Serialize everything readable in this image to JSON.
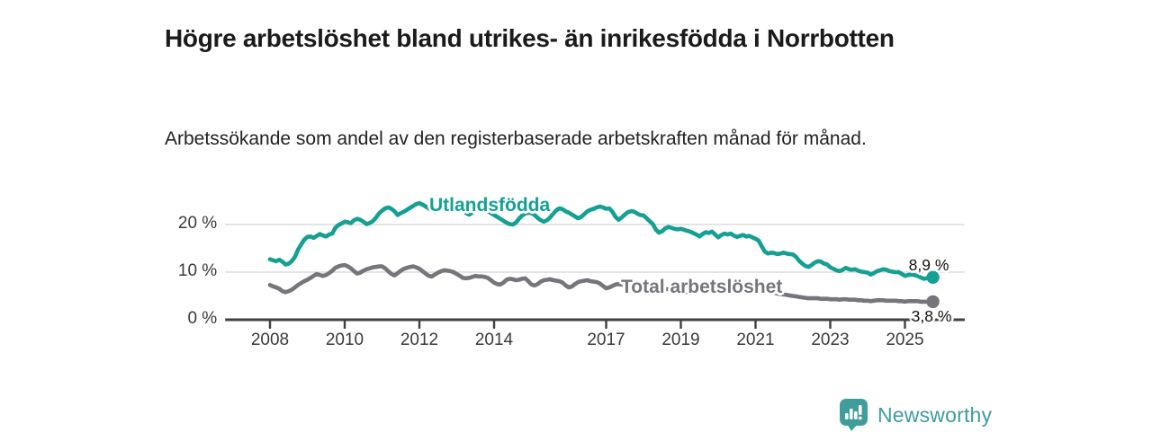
{
  "page": {
    "title": "Högre arbetslöshet bland utrikes- än inrikesfödda i Norrbotten",
    "subtitle": "Arbetssökande som andel av den registerbaserade arbetskraften månad för månad."
  },
  "footer": {
    "brand": "Newsworthy",
    "brand_color": "#3f9d9b"
  },
  "colors": {
    "foreign_born_line": "#14a092",
    "total_line": "#75757b",
    "grid": "#dcdcdc",
    "axis": "#404040",
    "tick_text": "#3a3a3a",
    "value_text": "#111111",
    "background": "#ffffff"
  },
  "chart_data": {
    "type": "line",
    "title": "Högre arbetslöshet bland utrikes- än inrikesfödda i Norrbotten",
    "subtitle": "Arbetssökande som andel av den registerbaserade arbetskraften månad för månad.",
    "unit": "percent",
    "frequency": "monthly",
    "grid": true,
    "legend_position": "inline-labels",
    "x_axis": {
      "tick_labels": [
        "2008",
        "2010",
        "2012",
        "2014",
        "2017",
        "2019",
        "2021",
        "2023",
        "2025"
      ],
      "tick_years": [
        2008,
        2010,
        2012,
        2014,
        2017,
        2019,
        2021,
        2023,
        2025
      ],
      "range": [
        2006.8,
        2026.6
      ]
    },
    "y_axis": {
      "ticks": [
        {
          "value": 0,
          "label": "0 %"
        },
        {
          "value": 10,
          "label": "10 %"
        },
        {
          "value": 20,
          "label": "20 %"
        }
      ],
      "range": [
        0,
        26
      ]
    },
    "series": [
      {
        "name": "Utlandsfödda",
        "color": "#14a092",
        "start_year": 2008,
        "end_value_label": "8,9 %",
        "end_value": 8.9,
        "values": [
          12.7,
          12.5,
          12.3,
          12.6,
          12.2,
          11.6,
          11.8,
          12.3,
          13.2,
          14.7,
          15.8,
          16.8,
          17.4,
          17.5,
          17.2,
          17.6,
          18.0,
          17.7,
          17.5,
          17.9,
          18.1,
          19.3,
          19.9,
          20.2,
          20.6,
          20.5,
          20.3,
          20.9,
          21.2,
          21.0,
          20.6,
          20.1,
          20.3,
          20.7,
          21.4,
          22.3,
          22.9,
          23.4,
          23.6,
          23.3,
          22.8,
          22.0,
          22.4,
          22.7,
          23.1,
          23.5,
          23.9,
          24.3,
          24.5,
          24.2,
          23.8,
          23.4,
          23.0,
          22.6,
          22.9,
          23.3,
          23.6,
          23.8,
          23.5,
          23.2,
          23.6,
          23.3,
          22.9,
          22.4,
          22.1,
          22.5,
          22.9,
          23.2,
          23.4,
          23.1,
          22.8,
          22.4,
          22.0,
          21.6,
          21.2,
          20.8,
          20.4,
          20.1,
          20.0,
          20.4,
          21.2,
          21.9,
          22.3,
          22.5,
          22.4,
          22.0,
          21.4,
          20.9,
          20.6,
          20.9,
          21.5,
          22.3,
          23.0,
          23.4,
          23.2,
          22.8,
          22.5,
          22.1,
          21.7,
          21.3,
          21.6,
          22.2,
          22.8,
          23.1,
          23.3,
          23.6,
          23.8,
          23.6,
          23.3,
          23.4,
          22.7,
          21.6,
          21.0,
          21.5,
          22.1,
          22.6,
          22.8,
          22.7,
          22.3,
          22.0,
          21.9,
          21.3,
          20.7,
          20.1,
          18.9,
          18.3,
          18.6,
          19.2,
          19.5,
          19.3,
          19.1,
          19.0,
          19.1,
          18.9,
          18.7,
          18.5,
          18.2,
          17.9,
          17.5,
          18.0,
          18.4,
          18.2,
          18.5,
          17.9,
          17.3,
          17.8,
          18.1,
          17.9,
          18.1,
          17.7,
          17.4,
          17.6,
          17.8,
          17.5,
          17.6,
          17.3,
          17.0,
          16.6,
          15.4,
          14.3,
          13.9,
          14.1,
          14.0,
          13.8,
          13.9,
          14.1,
          13.9,
          13.8,
          13.7,
          13.2,
          12.4,
          11.8,
          11.3,
          11.1,
          11.5,
          12.0,
          12.3,
          12.2,
          11.8,
          11.6,
          11.0,
          10.7,
          10.4,
          10.2,
          10.5,
          10.9,
          10.6,
          10.5,
          10.6,
          10.3,
          10.1,
          10.0,
          9.9,
          9.5,
          9.8,
          10.2,
          10.4,
          10.6,
          10.5,
          10.2,
          10.1,
          10.0,
          10.0,
          9.6,
          9.2,
          9.4,
          9.5,
          9.4,
          9.2,
          8.9,
          8.6,
          8.7,
          8.8,
          8.9
        ]
      },
      {
        "name": "Total arbetslöshet",
        "color": "#75757b",
        "start_year": 2008,
        "end_value_label": "3,8 %",
        "end_value": 3.8,
        "values": [
          7.3,
          7.0,
          6.8,
          6.5,
          6.0,
          5.8,
          6.0,
          6.3,
          6.8,
          7.3,
          7.7,
          8.1,
          8.4,
          8.8,
          9.2,
          9.6,
          9.4,
          9.2,
          9.4,
          9.8,
          10.3,
          10.9,
          11.2,
          11.4,
          11.5,
          11.2,
          10.8,
          10.2,
          9.7,
          9.9,
          10.3,
          10.6,
          10.8,
          11.0,
          11.1,
          11.2,
          11.2,
          10.8,
          10.2,
          9.6,
          9.3,
          9.8,
          10.3,
          10.7,
          10.9,
          11.1,
          11.2,
          11.0,
          10.7,
          10.2,
          9.7,
          9.2,
          9.1,
          9.5,
          9.9,
          10.2,
          10.4,
          10.3,
          10.2,
          10.0,
          9.6,
          9.2,
          8.8,
          8.7,
          8.8,
          9.0,
          9.2,
          9.1,
          9.1,
          9.0,
          8.8,
          8.3,
          7.8,
          7.5,
          7.4,
          7.8,
          8.4,
          8.6,
          8.5,
          8.3,
          8.4,
          8.6,
          8.7,
          8.1,
          7.4,
          7.2,
          7.5,
          8.0,
          8.3,
          8.4,
          8.5,
          8.3,
          8.2,
          8.1,
          7.8,
          7.2,
          6.8,
          7.0,
          7.5,
          7.9,
          8.1,
          8.2,
          8.3,
          8.1,
          8.0,
          7.9,
          7.6,
          7.1,
          6.6,
          6.8,
          7.1,
          7.4,
          7.5,
          7.4,
          7.2,
          7.1,
          7.2,
          7.3,
          7.1,
          6.8,
          6.5,
          6.3,
          6.2,
          6.4,
          6.6,
          6.7,
          6.6,
          6.5,
          6.4,
          6.4,
          6.2,
          6.0,
          5.8,
          5.7,
          5.8,
          6.0,
          6.1,
          6.2,
          6.1,
          6.0,
          6.0,
          5.9,
          5.8,
          5.8,
          5.9,
          6.1,
          6.6,
          7.1,
          7.4,
          7.5,
          7.4,
          7.2,
          7.0,
          6.9,
          6.7,
          6.5,
          6.4,
          6.2,
          6.0,
          5.9,
          5.9,
          5.8,
          5.7,
          5.5,
          5.4,
          5.3,
          5.2,
          5.1,
          5.0,
          4.9,
          4.8,
          4.7,
          4.6,
          4.5,
          4.5,
          4.5,
          4.5,
          4.4,
          4.4,
          4.4,
          4.3,
          4.3,
          4.3,
          4.2,
          4.3,
          4.3,
          4.2,
          4.2,
          4.2,
          4.1,
          4.1,
          4.0,
          4.0,
          3.9,
          4.0,
          4.1,
          4.1,
          4.1,
          4.0,
          4.0,
          4.0,
          4.0,
          3.9,
          3.9,
          3.8,
          3.9,
          3.9,
          3.9,
          3.9,
          3.8,
          3.8,
          3.8,
          3.8,
          3.8
        ]
      }
    ]
  }
}
